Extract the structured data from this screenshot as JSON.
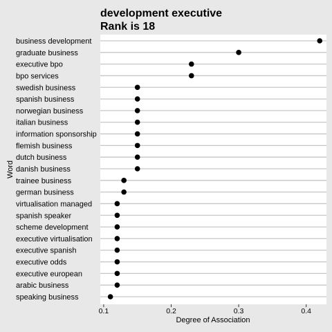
{
  "chart_data": {
    "type": "dot",
    "title": "development executive",
    "subtitle": "Rank is 18",
    "xlabel": "Degree of Association",
    "ylabel": "Word",
    "xlim": [
      0.095,
      0.43
    ],
    "xticks": [
      0.1,
      0.2,
      0.3,
      0.4
    ],
    "xtick_labels": [
      "0.1",
      "0.2",
      "0.3",
      "0.4"
    ],
    "grid": "horizontal",
    "categories": [
      "business development",
      "graduate business",
      "executive bpo",
      "bpo services",
      "swedish business",
      "spanish business",
      "norwegian business",
      "italian business",
      "information sponsorship",
      "flemish business",
      "dutch business",
      "danish business",
      "trainee business",
      "german business",
      "virtualisation managed",
      "spanish speaker",
      "scheme development",
      "executive virtualisation",
      "executive spanish",
      "executive odds",
      "executive european",
      "arabic business",
      "speaking business"
    ],
    "values": [
      0.42,
      0.3,
      0.23,
      0.23,
      0.15,
      0.15,
      0.15,
      0.15,
      0.15,
      0.15,
      0.15,
      0.15,
      0.13,
      0.13,
      0.12,
      0.12,
      0.12,
      0.12,
      0.12,
      0.12,
      0.12,
      0.12,
      0.11
    ]
  }
}
